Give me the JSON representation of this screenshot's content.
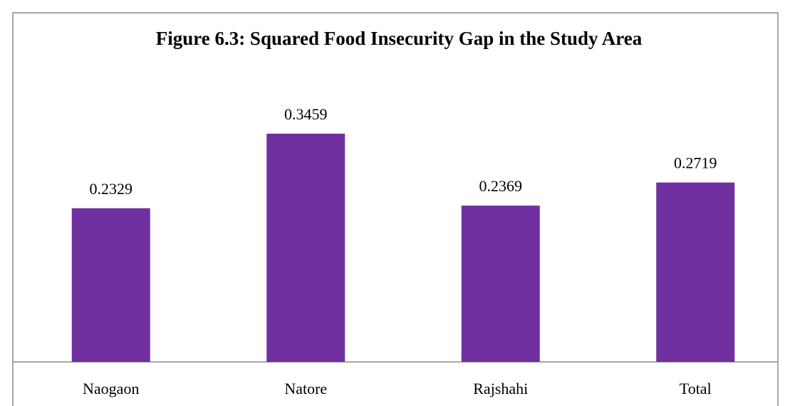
{
  "chart_data": {
    "type": "bar",
    "title": "Figure 6.3: Squared Food Insecurity Gap in the Study Area",
    "categories": [
      "Naogaon",
      "Natore",
      "Rajshahi",
      "Total"
    ],
    "values": [
      0.2329,
      0.3459,
      0.2369,
      0.2719
    ],
    "color": "#7030a0"
  }
}
